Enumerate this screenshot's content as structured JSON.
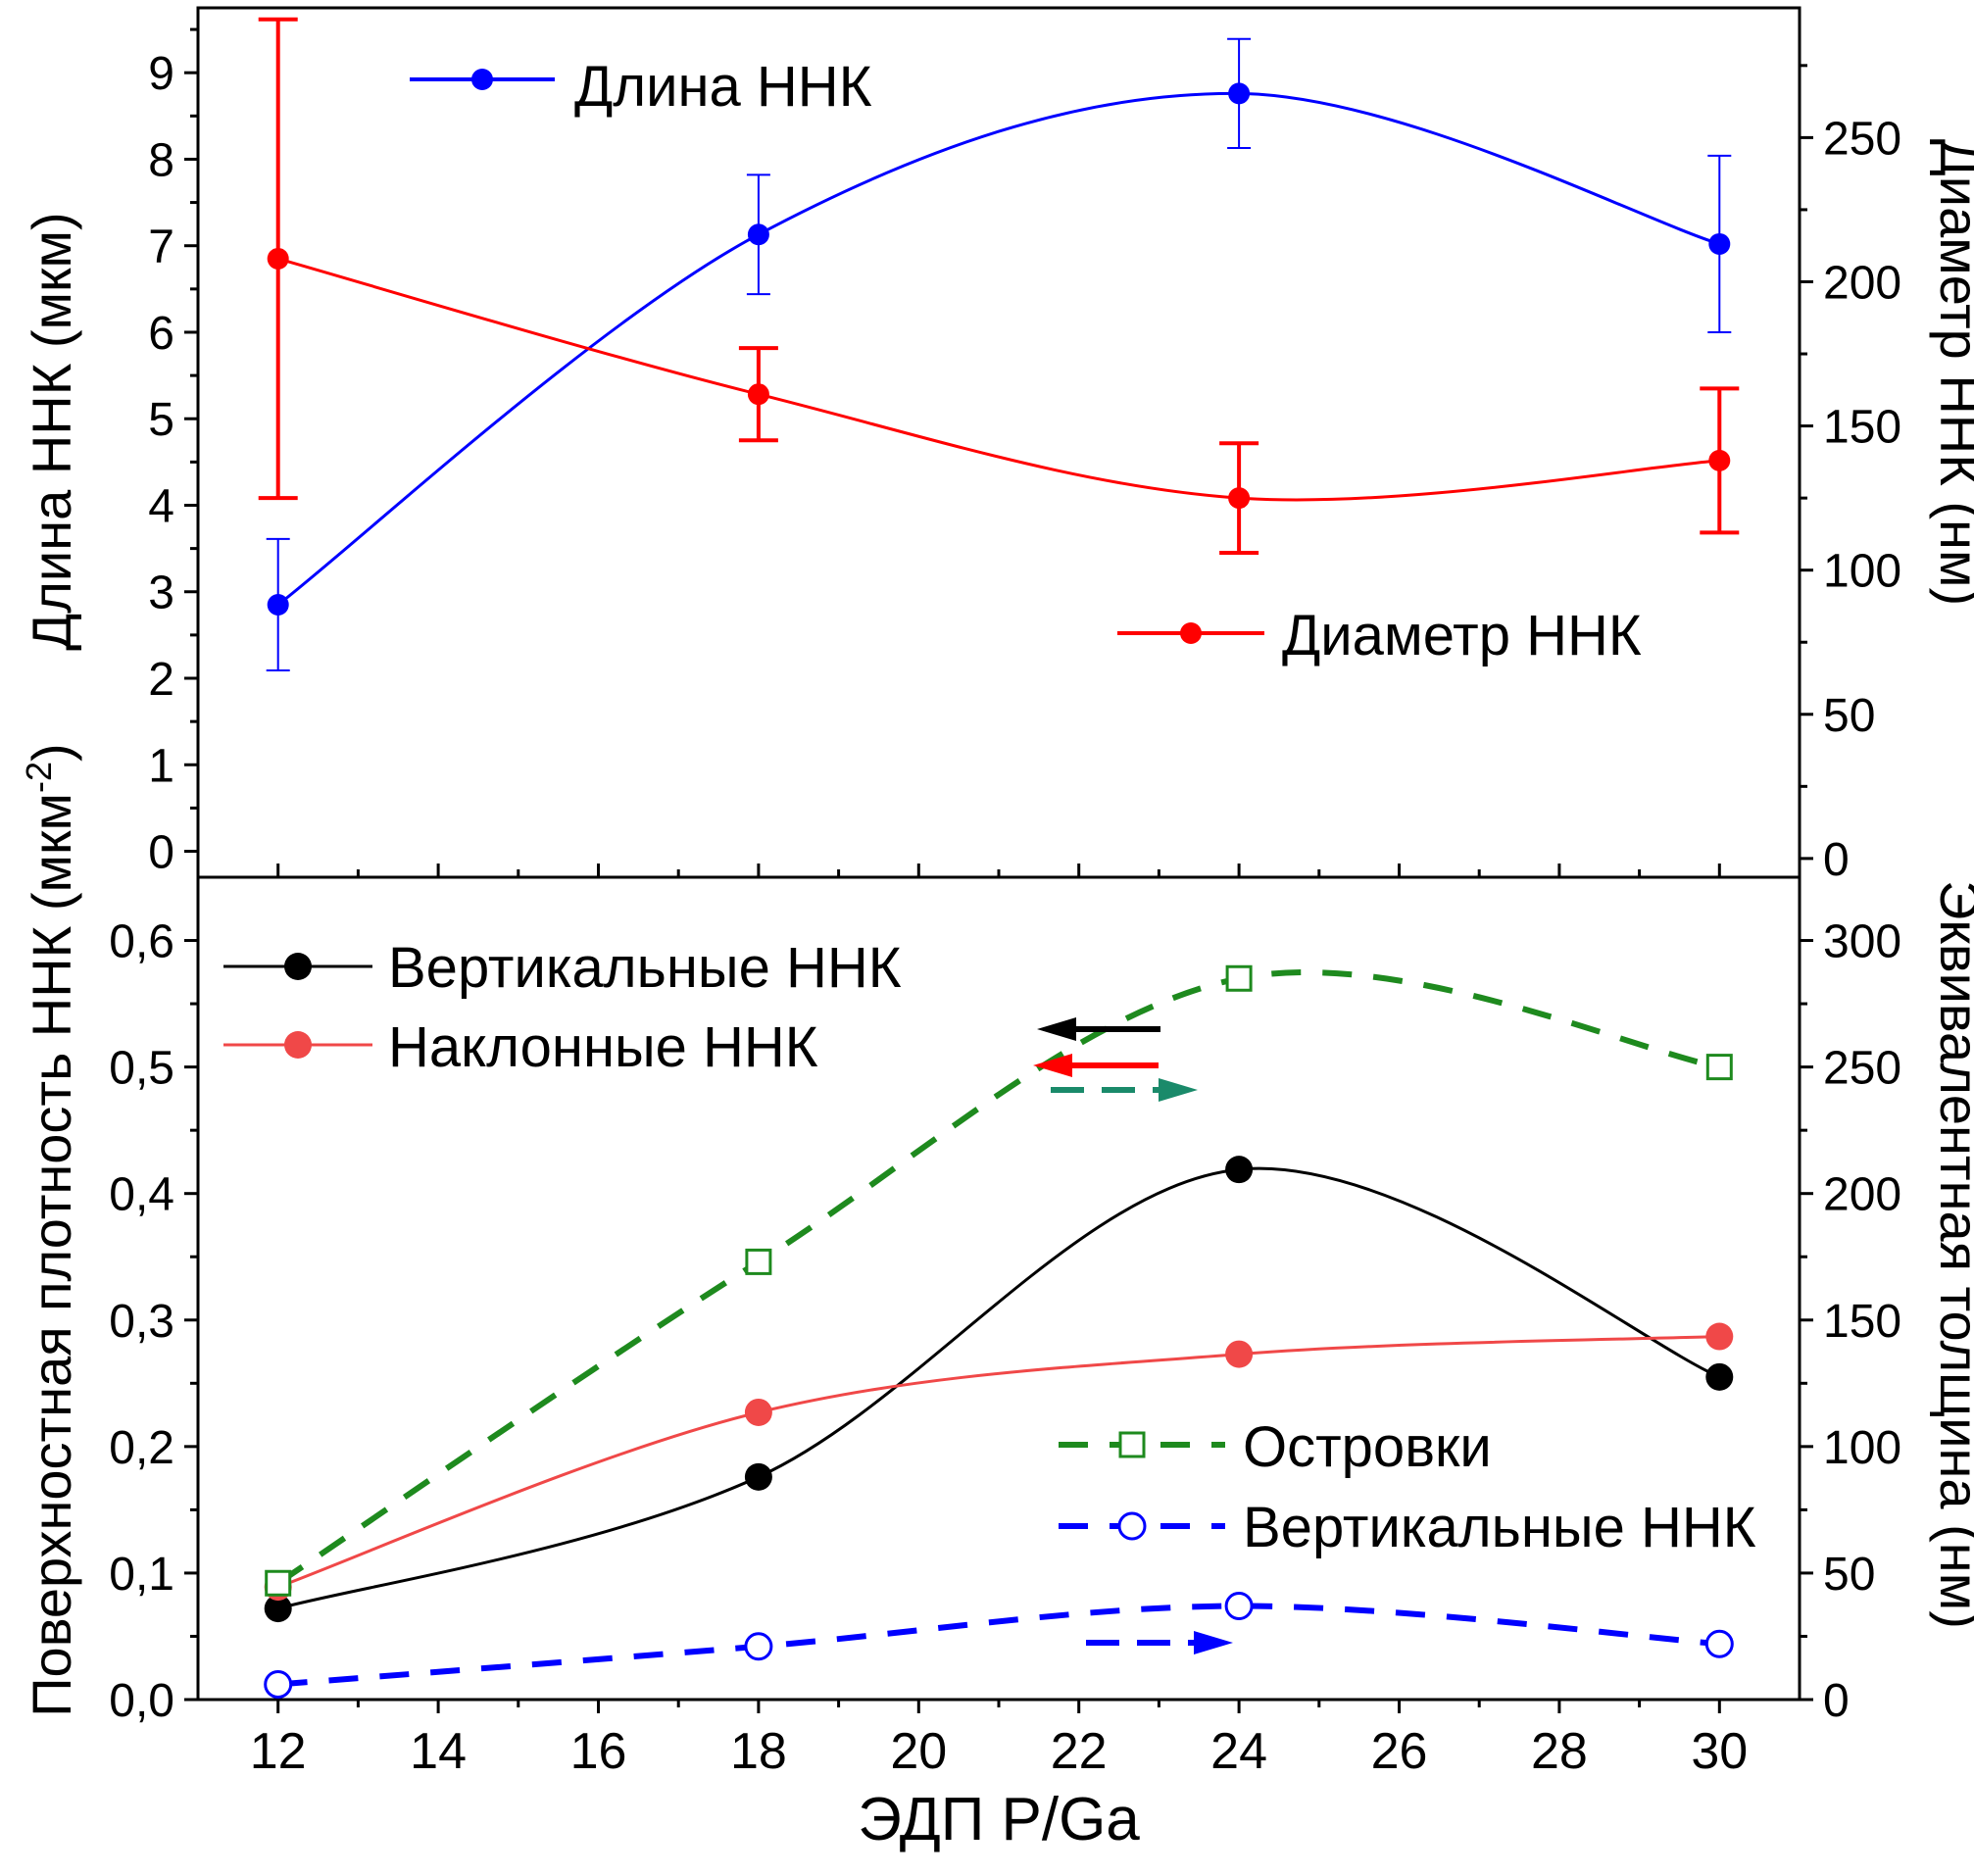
{
  "chart_data": [
    {
      "type": "line",
      "panel": "top",
      "x": [
        12,
        18,
        24,
        30
      ],
      "ylabel": "Длина ННК (мкм)",
      "y2label": "Диаметр ННК (нм)",
      "ylim": [
        -0.3,
        9.75
      ],
      "y2lim": [
        -6.5,
        295
      ],
      "yticks": [
        "0",
        "1",
        "2",
        "3",
        "4",
        "5",
        "6",
        "7",
        "8",
        "9"
      ],
      "y2ticks": [
        "0",
        "50",
        "100",
        "150",
        "200",
        "250"
      ],
      "series": [
        {
          "name": "Длина ННК",
          "axis": "left",
          "color": "#0000ff",
          "marker": "filled-circle",
          "line": "solid",
          "values": [
            2.85,
            7.13,
            8.76,
            7.02
          ],
          "errors": [
            0.76,
            0.69,
            0.63,
            1.02
          ]
        },
        {
          "name": "Диаметр ННК",
          "axis": "right",
          "color": "#ff0000",
          "marker": "filled-circle",
          "line": "solid",
          "values": [
            208,
            161,
            125,
            138
          ],
          "errors": [
            83,
            16,
            19,
            25
          ]
        }
      ]
    },
    {
      "type": "line",
      "panel": "bottom",
      "x": [
        12,
        18,
        24,
        30
      ],
      "xlabel": "ЭДП P/Ga",
      "xlim": [
        11,
        31
      ],
      "xticks": [
        "12",
        "14",
        "16",
        "18",
        "20",
        "22",
        "24",
        "26",
        "28",
        "30"
      ],
      "ylabel": "Поверхностная плотность ННК (мкм",
      "ylabel_sup": "-2",
      "ylabel_end": ")",
      "y2label": "Эквивалентная толщина (нм)",
      "ylim": [
        0,
        0.65
      ],
      "y2lim": [
        0,
        325
      ],
      "yticks": [
        "0,0",
        "0,1",
        "0,2",
        "0,3",
        "0,4",
        "0,5",
        "0,6"
      ],
      "y2ticks": [
        "0",
        "50",
        "100",
        "150",
        "200",
        "250",
        "300"
      ],
      "series": [
        {
          "name": "Вертикальные ННК",
          "axis": "left",
          "color": "#000000",
          "marker": "filled-circle",
          "line": "solid",
          "values": [
            0.072,
            0.176,
            0.419,
            0.255
          ]
        },
        {
          "name": "Наклонные ННК",
          "axis": "left",
          "color": "#f04848",
          "marker": "filled-circle",
          "line": "solid",
          "values": [
            0.089,
            0.227,
            0.273,
            0.287
          ]
        },
        {
          "name": "Островки",
          "axis": "right",
          "color": "#1e8a1e",
          "marker": "open-square",
          "line": "dashed",
          "values": [
            46,
            173,
            285,
            250
          ]
        },
        {
          "name": "Вертикальные ННК",
          "axis": "right",
          "color": "#0000ff",
          "marker": "open-circle",
          "line": "dashed",
          "values": [
            6,
            21,
            37,
            22
          ]
        }
      ],
      "arrows": [
        {
          "color": "#1a8a6a",
          "direction": "right",
          "style": "dashed",
          "points_to": "right-axis"
        },
        {
          "color": "#000000",
          "direction": "left",
          "style": "solid",
          "points_to": "left-axis"
        },
        {
          "color": "#ff0000",
          "direction": "left",
          "style": "solid",
          "points_to": "left-axis"
        },
        {
          "color": "#0000ff",
          "direction": "right",
          "style": "dashed",
          "points_to": "right-axis"
        }
      ]
    }
  ]
}
